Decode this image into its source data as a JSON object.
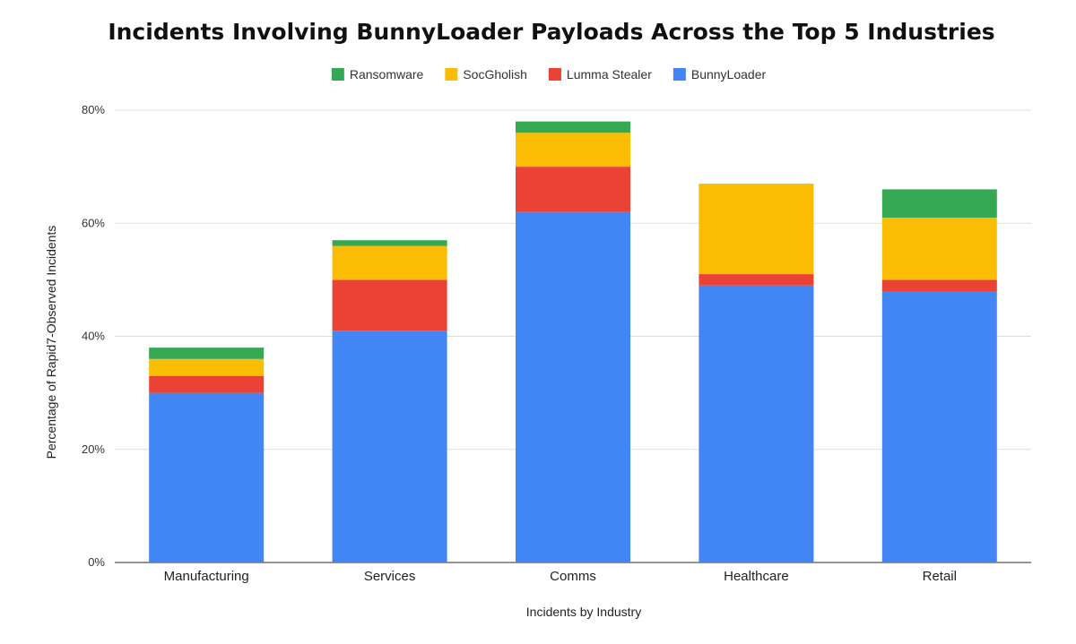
{
  "chart_data": {
    "type": "bar",
    "stacked": true,
    "title": "Incidents Involving BunnyLoader Payloads Across the Top 5 Industries",
    "xlabel": "Incidents by Industry",
    "ylabel": "Percentage of Rapid7-Observed Incidents",
    "ylim": [
      0,
      80
    ],
    "yticks": [
      "0%",
      "20%",
      "40%",
      "60%",
      "80%"
    ],
    "grid": true,
    "legend_position": "top",
    "categories": [
      "Manufacturing",
      "Services",
      "Comms",
      "Healthcare",
      "Retail"
    ],
    "series": [
      {
        "name": "BunnyLoader",
        "color": "#4285F4",
        "values": [
          30,
          41,
          62,
          49,
          48
        ]
      },
      {
        "name": "Lumma Stealer",
        "color": "#EA4335",
        "values": [
          3,
          9,
          8,
          2,
          2
        ]
      },
      {
        "name": "SocGholish",
        "color": "#FBBC04",
        "values": [
          3,
          6,
          6,
          16,
          11
        ]
      },
      {
        "name": "Ransomware",
        "color": "#34A853",
        "values": [
          2,
          1,
          2,
          0,
          5
        ]
      }
    ],
    "legend_order": [
      "Ransomware",
      "SocGholish",
      "Lumma Stealer",
      "BunnyLoader"
    ]
  }
}
